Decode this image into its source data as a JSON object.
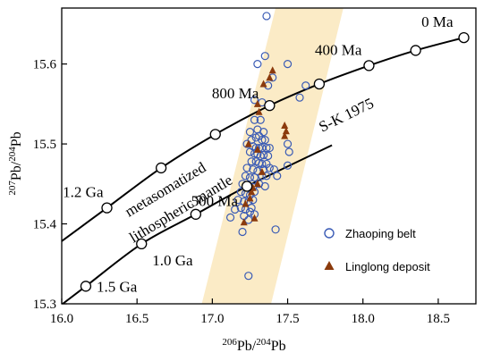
{
  "chart_data": {
    "type": "scatter",
    "xlim": [
      16.0,
      18.75
    ],
    "ylim": [
      15.3,
      15.67
    ],
    "xticks": [
      "16.0",
      "16.5",
      "17.0",
      "17.5",
      "18.0",
      "18.5"
    ],
    "yticks": [
      "15.3",
      "15.4",
      "15.5",
      "15.6"
    ],
    "xlabel": {
      "sup": "206",
      "main": "Pb/",
      "sup2": "204",
      "main2": "Pb"
    },
    "ylabel": {
      "sup": "207",
      "main": "Pb/",
      "sup2": "204",
      "main2": "Pb"
    },
    "band": {
      "label": "",
      "color": "#fbebc6",
      "bottom": [
        16.93,
        17.39
      ],
      "top": [
        17.42,
        17.87
      ]
    },
    "curves": [
      {
        "name": "S-K 1975",
        "points": [
          {
            "x": 16.3,
            "y": 15.42,
            "label": "1.2 Ga"
          },
          {
            "x": 16.66,
            "y": 15.47
          },
          {
            "x": 17.02,
            "y": 15.512
          },
          {
            "x": 17.38,
            "y": 15.548,
            "label": "800 Ma"
          },
          {
            "x": 17.71,
            "y": 15.575
          },
          {
            "x": 18.04,
            "y": 15.598,
            "label": "400 Ma"
          },
          {
            "x": 18.35,
            "y": 15.617
          },
          {
            "x": 18.67,
            "y": 15.633,
            "label": "0 Ma"
          }
        ]
      },
      {
        "name": "",
        "points": [
          {
            "x": 16.16,
            "y": 15.322,
            "label": "1.5 Ga"
          },
          {
            "x": 16.53,
            "y": 15.375,
            "label": "1.0 Ga"
          },
          {
            "x": 16.89,
            "y": 15.412
          },
          {
            "x": 17.23,
            "y": 15.447,
            "label": "500 Ma"
          }
        ]
      }
    ],
    "annotations": [
      "metasomatized",
      "lithospheric mantle",
      "S-K 1975"
    ],
    "series": [
      {
        "name": "Zhaoping belt",
        "marker": "circle",
        "color": "#3a5bb5",
        "points": [
          [
            17.36,
            15.66
          ],
          [
            17.35,
            15.61
          ],
          [
            17.3,
            15.6
          ],
          [
            17.5,
            15.6
          ],
          [
            17.4,
            15.583
          ],
          [
            17.37,
            15.573
          ],
          [
            17.62,
            15.573
          ],
          [
            17.28,
            15.555
          ],
          [
            17.33,
            15.552
          ],
          [
            17.58,
            15.558
          ],
          [
            17.28,
            15.53
          ],
          [
            17.32,
            15.53
          ],
          [
            17.25,
            15.515
          ],
          [
            17.3,
            15.518
          ],
          [
            17.34,
            15.515
          ],
          [
            17.26,
            15.505
          ],
          [
            17.29,
            15.508
          ],
          [
            17.31,
            15.51
          ],
          [
            17.33,
            15.505
          ],
          [
            17.35,
            15.505
          ],
          [
            17.23,
            15.5
          ],
          [
            17.27,
            15.497
          ],
          [
            17.29,
            15.495
          ],
          [
            17.31,
            15.495
          ],
          [
            17.33,
            15.495
          ],
          [
            17.36,
            15.495
          ],
          [
            17.38,
            15.495
          ],
          [
            17.5,
            15.5
          ],
          [
            17.25,
            15.49
          ],
          [
            17.28,
            15.488
          ],
          [
            17.3,
            15.487
          ],
          [
            17.32,
            15.485
          ],
          [
            17.34,
            15.486
          ],
          [
            17.37,
            15.485
          ],
          [
            17.51,
            15.49
          ],
          [
            17.26,
            15.478
          ],
          [
            17.29,
            15.478
          ],
          [
            17.31,
            15.476
          ],
          [
            17.33,
            15.475
          ],
          [
            17.36,
            15.475
          ],
          [
            17.23,
            15.47
          ],
          [
            17.27,
            15.468
          ],
          [
            17.3,
            15.466
          ],
          [
            17.34,
            15.468
          ],
          [
            17.38,
            15.47
          ],
          [
            17.41,
            15.468
          ],
          [
            17.5,
            15.473
          ],
          [
            17.22,
            15.46
          ],
          [
            17.25,
            15.458
          ],
          [
            17.28,
            15.458
          ],
          [
            17.33,
            15.46
          ],
          [
            17.36,
            15.46
          ],
          [
            17.43,
            15.46
          ],
          [
            17.2,
            15.45
          ],
          [
            17.24,
            15.448
          ],
          [
            17.27,
            15.446
          ],
          [
            17.31,
            15.45
          ],
          [
            17.35,
            15.447
          ],
          [
            17.19,
            15.44
          ],
          [
            17.22,
            15.438
          ],
          [
            17.25,
            15.436
          ],
          [
            17.28,
            15.44
          ],
          [
            17.17,
            15.43
          ],
          [
            17.21,
            15.428
          ],
          [
            17.24,
            15.428
          ],
          [
            17.27,
            15.43
          ],
          [
            17.19,
            15.42
          ],
          [
            17.22,
            15.418
          ],
          [
            17.25,
            15.415
          ],
          [
            17.21,
            15.41
          ],
          [
            17.24,
            15.405
          ],
          [
            17.26,
            15.42
          ],
          [
            17.28,
            15.412
          ],
          [
            17.42,
            15.393
          ],
          [
            17.2,
            15.39
          ],
          [
            17.24,
            15.335
          ],
          [
            17.15,
            15.418
          ],
          [
            17.12,
            15.408
          ]
        ]
      },
      {
        "name": "Linglong deposit",
        "marker": "triangle",
        "color": "#8b3a0c",
        "points": [
          [
            17.4,
            15.592
          ],
          [
            17.34,
            15.575
          ],
          [
            17.38,
            15.583
          ],
          [
            17.3,
            15.55
          ],
          [
            17.31,
            15.54
          ],
          [
            17.48,
            15.523
          ],
          [
            17.49,
            15.516
          ],
          [
            17.48,
            15.51
          ],
          [
            17.24,
            15.5
          ],
          [
            17.3,
            15.493
          ],
          [
            17.33,
            15.465
          ],
          [
            17.27,
            15.445
          ],
          [
            17.3,
            15.45
          ],
          [
            17.22,
            15.425
          ],
          [
            17.25,
            15.432
          ],
          [
            17.28,
            15.407
          ],
          [
            17.26,
            15.44
          ],
          [
            17.21,
            15.402
          ]
        ]
      }
    ],
    "legend": {
      "position": "bottom-right"
    }
  }
}
